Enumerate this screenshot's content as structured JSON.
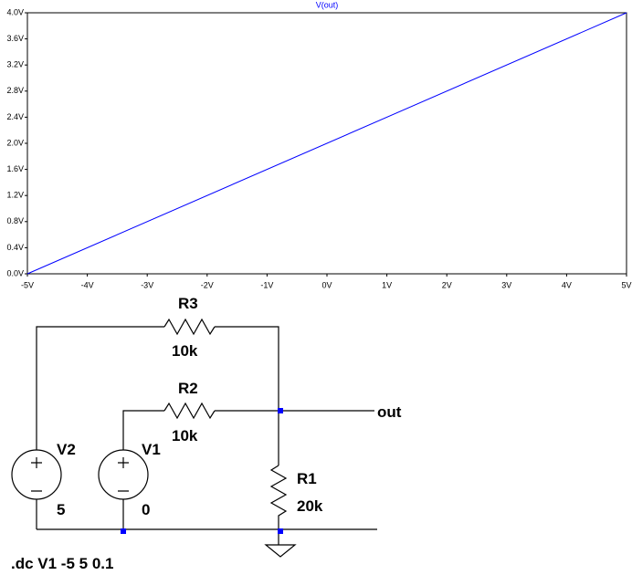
{
  "chart_data": {
    "type": "line",
    "x": [
      -5,
      5
    ],
    "series": [
      {
        "name": "V(out)",
        "color": "#0000ff",
        "values": [
          0,
          4
        ]
      }
    ],
    "xlim": [
      -5,
      5
    ],
    "xticks": [
      {
        "value": -5,
        "label": "-5V"
      },
      {
        "value": -4,
        "label": "-4V"
      },
      {
        "value": -3,
        "label": "-3V"
      },
      {
        "value": -2,
        "label": "-2V"
      },
      {
        "value": -1,
        "label": "-1V"
      },
      {
        "value": 0,
        "label": "0V"
      },
      {
        "value": 1,
        "label": "1V"
      },
      {
        "value": 2,
        "label": "2V"
      },
      {
        "value": 3,
        "label": "3V"
      },
      {
        "value": 4,
        "label": "4V"
      },
      {
        "value": 5,
        "label": "5V"
      }
    ],
    "ylim": [
      0,
      4
    ],
    "yticks": [
      {
        "value": 0,
        "label": "0.0V"
      },
      {
        "value": 0.4,
        "label": "0.4V"
      },
      {
        "value": 0.8,
        "label": "0.8V"
      },
      {
        "value": 1.2,
        "label": "1.2V"
      },
      {
        "value": 1.6,
        "label": "1.6V"
      },
      {
        "value": 2,
        "label": "2.0V"
      },
      {
        "value": 2.4,
        "label": "2.4V"
      },
      {
        "value": 2.8,
        "label": "2.8V"
      },
      {
        "value": 3.2,
        "label": "3.2V"
      },
      {
        "value": 3.6,
        "label": "3.6V"
      },
      {
        "value": 4,
        "label": "4.0V"
      }
    ]
  },
  "schematic": {
    "components": [
      {
        "name": "R3",
        "value": "10k"
      },
      {
        "name": "R2",
        "value": "10k"
      },
      {
        "name": "V2",
        "value": "5"
      },
      {
        "name": "V1",
        "value": "0"
      },
      {
        "name": "R1",
        "value": "20k"
      }
    ],
    "net_label": "out",
    "directive": ".dc V1 -5 5 0.1"
  }
}
